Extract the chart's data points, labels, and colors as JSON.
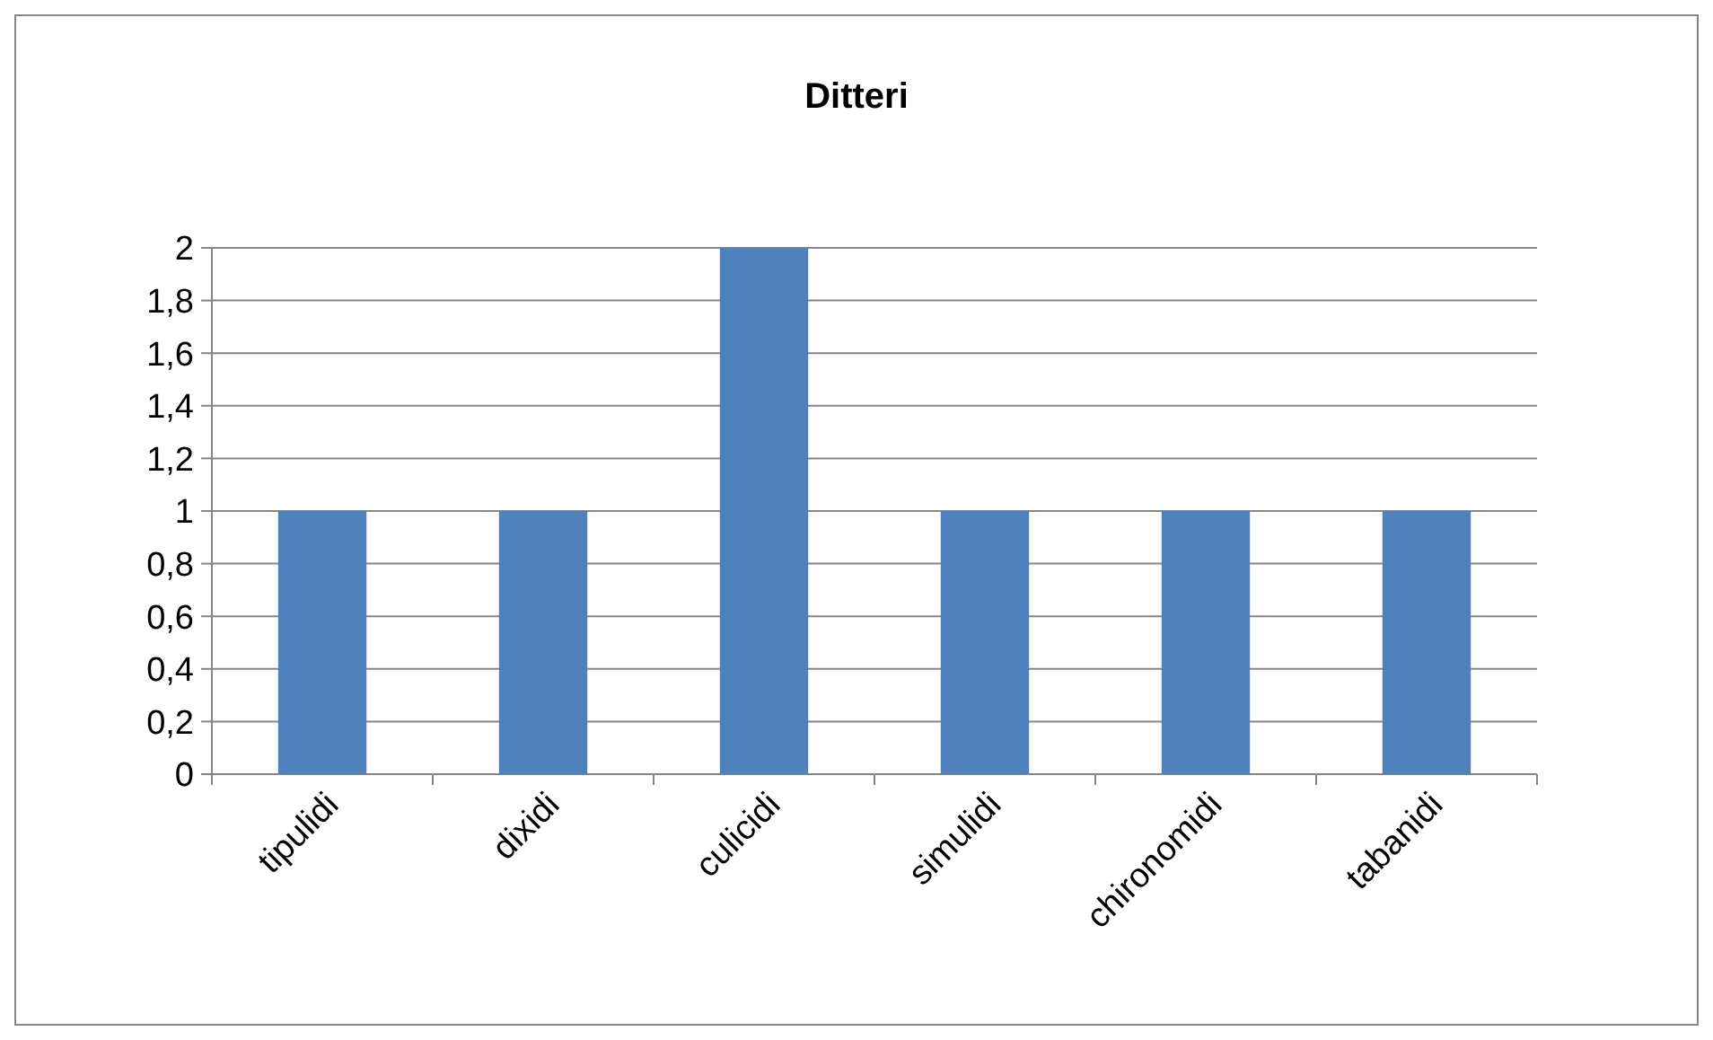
{
  "chart_data": {
    "type": "bar",
    "title": "Ditteri",
    "categories": [
      "tipulidi",
      "dixidi",
      "culicidi",
      "simulidi",
      "chironomidi",
      "tabanidi"
    ],
    "values": [
      1,
      1,
      2,
      1,
      1,
      1
    ],
    "color": "#4f81bd",
    "ylim": [
      0,
      2
    ],
    "yticks": [
      0,
      {
        "value": 0.2,
        "label": "0,2"
      },
      {
        "value": 0.4,
        "label": "0,4"
      },
      {
        "value": 0.6,
        "label": "0,6"
      },
      {
        "value": 0.8,
        "label": "0,8"
      },
      1,
      {
        "value": 1.2,
        "label": "1,2"
      },
      {
        "value": 1.4,
        "label": "1,4"
      },
      {
        "value": 1.6,
        "label": "1,6"
      },
      {
        "value": 1.8,
        "label": "1,8"
      },
      2
    ],
    "grid": "y",
    "legend": false
  }
}
